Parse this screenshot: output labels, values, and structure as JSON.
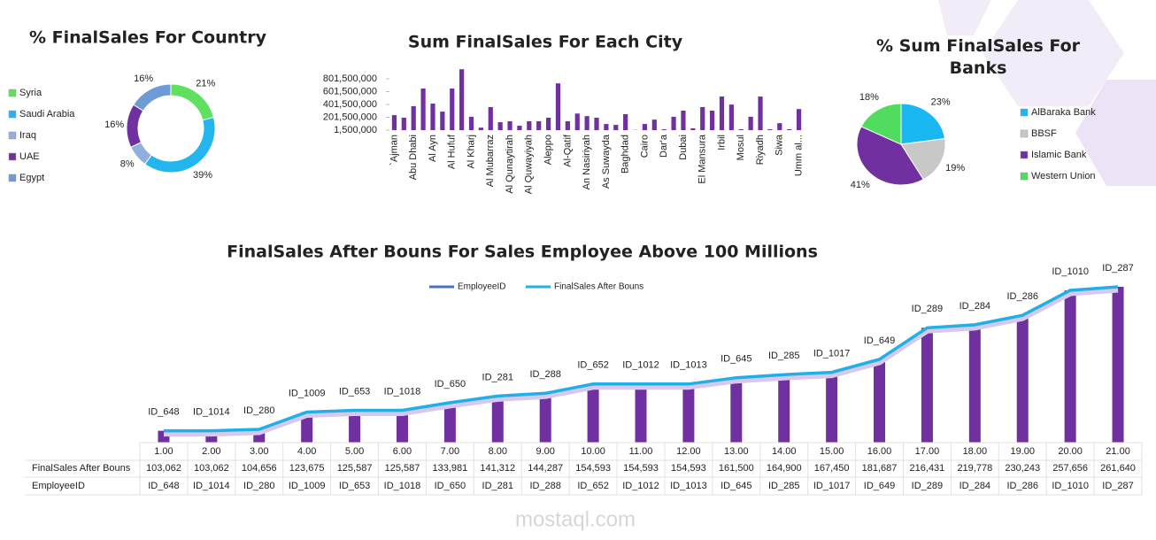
{
  "chart_data": [
    {
      "type": "donut",
      "title": "% FinalSales For Country",
      "categories": [
        "Syria",
        "Saudi Arabia",
        "Iraq",
        "UAE",
        "Egypt"
      ],
      "values": [
        21,
        39,
        8,
        16,
        16
      ],
      "value_labels": [
        "21%",
        "39%",
        "8%",
        "16%",
        "16%"
      ],
      "colors": [
        "#5fe05f",
        "#22b5ee",
        "#8fb0dc",
        "#7030a0",
        "#6d9bd6"
      ]
    },
    {
      "type": "bar",
      "title": "Sum FinalSales For Each City",
      "categories": [
        "`Ajman",
        null,
        "Abu Dhabi",
        null,
        "Al Ayn",
        null,
        "Al Hufuf",
        null,
        "Al Kharj",
        null,
        "Al Mubarraz",
        null,
        "Al Qunaytirah",
        null,
        "Al Quwayiyah",
        null,
        "Aleppo",
        null,
        "Al-Qatif",
        null,
        "An Nasiriyah",
        null,
        "As Suwayda",
        null,
        "Baghdad",
        null,
        "Cairo",
        null,
        "Dar'a",
        null,
        "Dubai",
        null,
        "El Mansura",
        null,
        "Irbil",
        null,
        "Mosul",
        null,
        "Riyadh",
        null,
        "Siwa",
        null,
        "Umm al..."
      ],
      "values": [
        235000000,
        195000000,
        375000000,
        650000000,
        415000000,
        290000000,
        650000000,
        950000000,
        210000000,
        40000000,
        360000000,
        125000000,
        140000000,
        70000000,
        140000000,
        140000000,
        195000000,
        730000000,
        140000000,
        260000000,
        220000000,
        195000000,
        97000000,
        83000000,
        250000000,
        5000000,
        97000000,
        165000000,
        15000000,
        210000000,
        305000000,
        30000000,
        360000000,
        305000000,
        525000000,
        400000000,
        15000000,
        210000000,
        525000000,
        15000000,
        110000000,
        15000000,
        330000000
      ],
      "color": "#7030a0",
      "ylim": [
        1500000,
        1001500000
      ],
      "yticks": [
        {
          "value": 1500000,
          "label": "1,500,000"
        },
        {
          "value": 201500000,
          "label": "201,500,000"
        },
        {
          "value": 401500000,
          "label": "401,500,000"
        },
        {
          "value": 601500000,
          "label": "601,500,000"
        },
        {
          "value": 801500000,
          "label": "801,500,000"
        }
      ]
    },
    {
      "type": "pie",
      "title": "% Sum FinalSales For Banks",
      "categories": [
        "AlBaraka Bank",
        "BBSF",
        "Islamic Bank",
        "Western Union"
      ],
      "values": [
        23,
        19,
        41,
        18
      ],
      "value_labels": [
        "23%",
        "19%",
        "41%",
        "18%"
      ],
      "colors": [
        "#1ab8f2",
        "#c8c8c8",
        "#7030a0",
        "#4fdc5f"
      ]
    },
    {
      "type": "combo",
      "title": "FinalSales After Bouns For Sales Employee Above 100 Millions",
      "categories": [
        "1.00",
        "2.00",
        "3.00",
        "4.00",
        "5.00",
        "6.00",
        "7.00",
        "8.00",
        "9.00",
        "10.00",
        "11.00",
        "12.00",
        "13.00",
        "14.00",
        "15.00",
        "16.00",
        "17.00",
        "18.00",
        "19.00",
        "20.00",
        "21.00"
      ],
      "bar_color": "#7030a0",
      "ylim": [
        90000,
        285000
      ],
      "series": [
        {
          "name": "EmployeeID",
          "color": "#4472c4",
          "labels": [
            "ID_648",
            "ID_1014",
            "ID_280",
            "ID_1009",
            "ID_653",
            "ID_1018",
            "ID_650",
            "ID_281",
            "ID_288",
            "ID_652",
            "ID_1012",
            "ID_1013",
            "ID_645",
            "ID_285",
            "ID_1017",
            "ID_649",
            "ID_289",
            "ID_284",
            "ID_286",
            "ID_1010",
            "ID_287"
          ]
        },
        {
          "name": "FinalSales After Bouns",
          "color": "#1fb0e8",
          "values": [
            103062,
            103062,
            104656,
            123675,
            125587,
            125587,
            133981,
            141312,
            144287,
            154593,
            154593,
            154593,
            161500,
            164900,
            167450,
            181687,
            216431,
            219778,
            230243,
            257656,
            261640
          ],
          "value_labels": [
            "103,062",
            "103,062",
            "104,656",
            "123,675",
            "125,587",
            "125,587",
            "133,981",
            "141,312",
            "144,287",
            "154,593",
            "154,593",
            "154,593",
            "161,500",
            "164,900",
            "167,450",
            "181,687",
            "216,431",
            "219,778",
            "230,243",
            "257,656",
            "261,640"
          ]
        }
      ]
    }
  ],
  "watermark": "mostaql.com"
}
